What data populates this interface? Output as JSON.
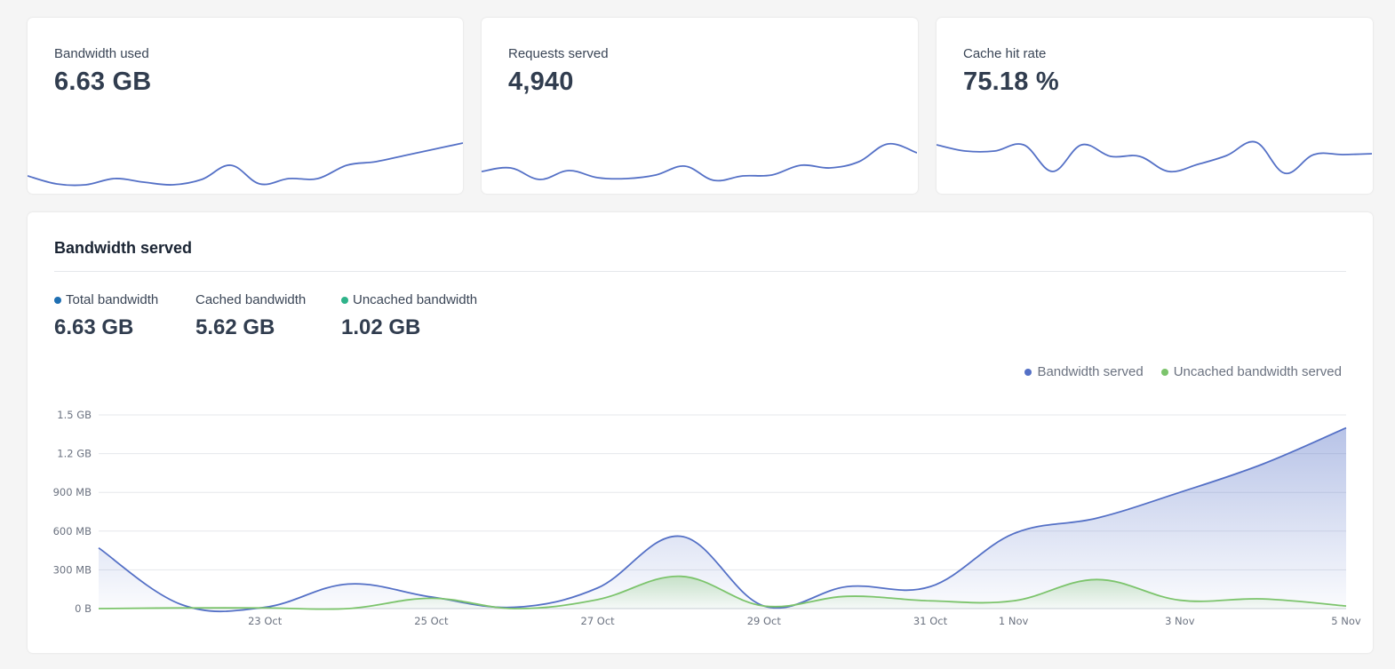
{
  "stats": [
    {
      "label": "Bandwidth used",
      "value": "6.63  GB",
      "sparkline": [
        20,
        29,
        30,
        23,
        27,
        30,
        24,
        8,
        29,
        23,
        23,
        8,
        4,
        -3,
        -10,
        -17
      ]
    },
    {
      "label": "Requests served",
      "value": "4,940",
      "sparkline": [
        15,
        11,
        24,
        14,
        22,
        23,
        19,
        9,
        25,
        20,
        19,
        8,
        11,
        4,
        -16,
        -6
      ]
    },
    {
      "label": "Cache hit rate",
      "value": "75.18 %",
      "sparkline": [
        -15,
        -8,
        -8,
        -15,
        15,
        -15,
        -2,
        -2,
        15,
        7,
        -3,
        -18,
        17,
        -4,
        -4,
        -5
      ]
    }
  ],
  "panel": {
    "title": "Bandwidth served",
    "summary": [
      {
        "label": "Total bandwidth",
        "value": "6.63 GB",
        "dot": "#1f6fb2"
      },
      {
        "label": "Cached bandwidth",
        "value": "5.62 GB",
        "dot": null
      },
      {
        "label": "Uncached bandwidth",
        "value": "1.02 GB",
        "dot": "#2fb38a"
      }
    ]
  },
  "colors": {
    "accent_line": "#5470c6",
    "uncached_line": "#7cc46c",
    "grid": "#e5e7eb"
  },
  "chart_data": {
    "type": "area",
    "title": "",
    "xlabel": "",
    "ylabel": "",
    "legend_placement": "top-right",
    "grid": true,
    "x": [
      "21 Oct",
      "22 Oct",
      "23 Oct",
      "24 Oct",
      "25 Oct",
      "26 Oct",
      "27 Oct",
      "28 Oct",
      "29 Oct",
      "30 Oct",
      "31 Oct",
      "1 Nov",
      "2 Nov",
      "3 Nov",
      "4 Nov",
      "5 Nov"
    ],
    "x_tick_labels": [
      "23 Oct",
      "25 Oct",
      "27 Oct",
      "29 Oct",
      "31 Oct",
      "1 Nov",
      "3 Nov",
      "5 Nov"
    ],
    "y_tick_labels": [
      "0 B",
      "300 MB",
      "600 MB",
      "900 MB",
      "1.2 GB",
      "1.5 GB"
    ],
    "ylim": [
      0,
      1500
    ],
    "y_unit": "MB",
    "series": [
      {
        "name": "Bandwidth served",
        "color": "#5470c6",
        "values": [
          470,
          30,
          10,
          190,
          90,
          10,
          160,
          560,
          20,
          170,
          170,
          580,
          700,
          900,
          1120,
          1400
        ]
      },
      {
        "name": "Uncached bandwidth served",
        "color": "#7cc46c",
        "values": [
          0,
          5,
          5,
          0,
          80,
          0,
          70,
          250,
          20,
          95,
          60,
          60,
          225,
          65,
          75,
          20
        ]
      }
    ]
  }
}
